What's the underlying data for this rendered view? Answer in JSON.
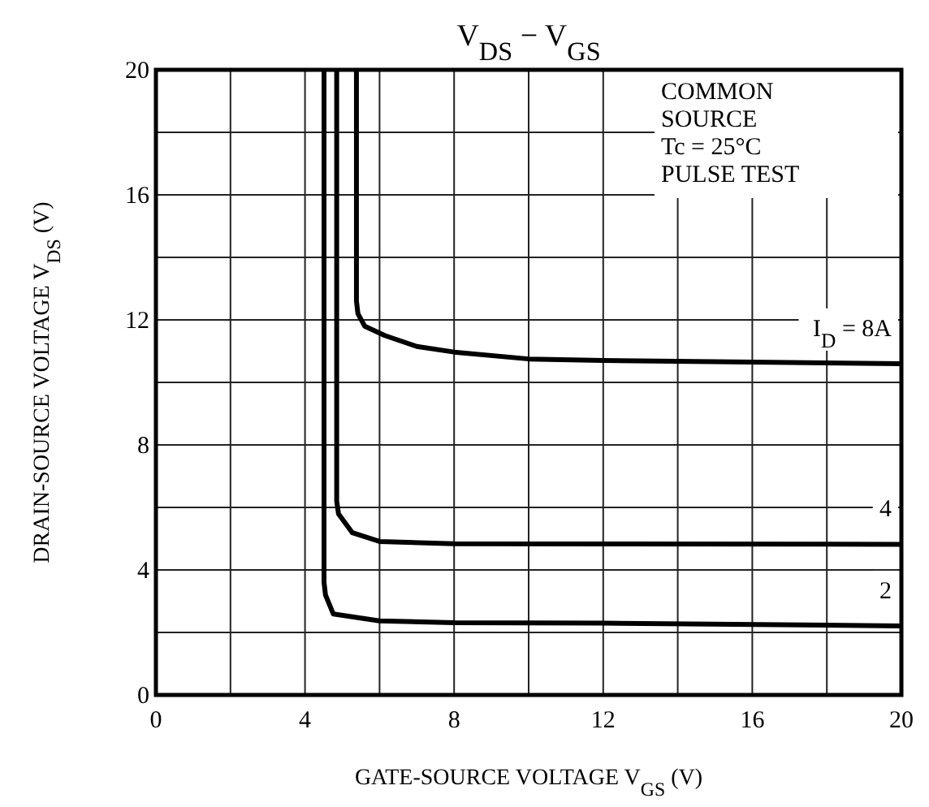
{
  "chart_data": {
    "type": "line",
    "title": "V$_{DS}$ − V$_{GS}$",
    "xlabel": "GATE-SOURCE VOLTAGE  V$_{GS}$  (V)",
    "ylabel": "DRAIN-SOURCE VOLTAGE  V$_{DS}$  (V)",
    "annotations": [
      "COMMON",
      "SOURCE",
      "Tc = 25°C",
      "PULSE TEST"
    ],
    "xlim": [
      0,
      20
    ],
    "ylim": [
      0,
      20
    ],
    "xticks": [
      0,
      {
        "value": 2,
        "label": null
      },
      4,
      {
        "value": 6,
        "label": null
      },
      8,
      {
        "value": 10,
        "label": null
      },
      12,
      {
        "value": 14,
        "label": null
      },
      16,
      {
        "value": 18,
        "label": null
      },
      20
    ],
    "yticks": [
      0,
      {
        "value": 2,
        "label": null
      },
      4,
      {
        "value": 6,
        "label": null
      },
      8,
      {
        "value": 10,
        "label": null
      },
      12,
      {
        "value": 14,
        "label": null
      },
      16,
      {
        "value": 18,
        "label": null
      },
      20
    ],
    "grid": true,
    "marker": "none",
    "line_style": "solid",
    "series": [
      {
        "name": "I$_{D}$ = 8A",
        "color": "#000000",
        "x": [
          5.38,
          5.38,
          5.42,
          5.6,
          6.14,
          7,
          8,
          10,
          12,
          16,
          20
        ],
        "values": [
          20,
          12.6,
          12.2,
          11.8,
          11.5,
          11.15,
          10.97,
          10.75,
          10.7,
          10.65,
          10.6
        ]
      },
      {
        "name": "4",
        "color": "#000000",
        "x": [
          4.85,
          4.85,
          4.9,
          5.27,
          6,
          8,
          12,
          20
        ],
        "values": [
          20,
          6.2,
          5.79,
          5.19,
          4.91,
          4.84,
          4.83,
          4.82
        ]
      },
      {
        "name": "2",
        "color": "#000000",
        "x": [
          4.51,
          4.51,
          4.55,
          4.76,
          6,
          8,
          12,
          20
        ],
        "values": [
          20,
          3.6,
          3.2,
          2.59,
          2.37,
          2.31,
          2.3,
          2.21
        ]
      }
    ]
  }
}
